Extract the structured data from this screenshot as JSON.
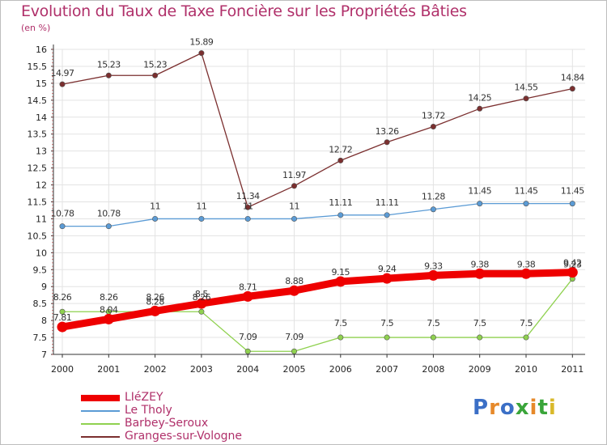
{
  "chart_data": {
    "type": "line",
    "title": "Evolution du Taux de Taxe Foncière sur les Propriétés Bâties",
    "subtitle": "(en %)",
    "ylim": [
      7,
      16
    ],
    "yticks": [
      "7",
      "7.5",
      "8",
      "8.5",
      "9",
      "9.5",
      "10",
      "10.5",
      "11",
      "11.5",
      "12",
      "12.5",
      "13",
      "13.5",
      "14",
      "14.5",
      "15",
      "15.5",
      "16"
    ],
    "categories": [
      "2000",
      "2001",
      "2002",
      "2003",
      "2004",
      "2005",
      "2006",
      "2007",
      "2008",
      "2009",
      "2010",
      "2011"
    ],
    "series": [
      {
        "name": "LIéZEY",
        "color": "#ee0000",
        "values": [
          7.81,
          8.04,
          8.28,
          8.5,
          8.71,
          8.88,
          9.15,
          9.24,
          9.33,
          9.38,
          9.38,
          9.42
        ],
        "labels": [
          "7.81",
          "8.04",
          "8.28",
          "8.5",
          "8.71",
          "8.88",
          "9.15",
          "9.24",
          "9.33",
          "9.38",
          "9.38",
          "9.42"
        ]
      },
      {
        "name": "Le Tholy",
        "color": "#5b9bd5",
        "values": [
          10.78,
          10.78,
          11,
          11,
          11,
          11,
          11.11,
          11.11,
          11.28,
          11.45,
          11.45,
          11.45
        ],
        "labels": [
          "10.78",
          "10.78",
          "11",
          "11",
          "11",
          "11",
          "11.11",
          "11.11",
          "11.28",
          "11.45",
          "11.45",
          "11.45"
        ]
      },
      {
        "name": "Barbey-Seroux",
        "color": "#8fd14f",
        "values": [
          8.26,
          8.26,
          8.26,
          8.26,
          7.09,
          7.09,
          7.5,
          7.5,
          7.5,
          7.5,
          7.5,
          9.23
        ],
        "labels": [
          "8.26",
          "8.26",
          "8.26",
          "8.26",
          "7.09",
          "7.09",
          "7.5",
          "7.5",
          "7.5",
          "7.5",
          "7.5",
          "9.23"
        ]
      },
      {
        "name": "Granges-sur-Vologne",
        "color": "#7b2f2f",
        "values": [
          14.97,
          15.23,
          15.23,
          15.89,
          11.34,
          11.97,
          12.72,
          13.26,
          13.72,
          14.25,
          14.55,
          14.84
        ],
        "labels": [
          "14.97",
          "15.23",
          "15.23",
          "15.89",
          "11.34",
          "11.97",
          "12.72",
          "13.26",
          "13.72",
          "14.25",
          "14.55",
          "14.84"
        ]
      }
    ]
  },
  "logo": {
    "letters": [
      "P",
      "r",
      "o",
      "x",
      "i",
      "t",
      "i"
    ],
    "colors": [
      "#3b6fc6",
      "#e6892a",
      "#3b6fc6",
      "#3aa53a",
      "#e6892a",
      "#3aa53a",
      "#d9b92a"
    ]
  }
}
